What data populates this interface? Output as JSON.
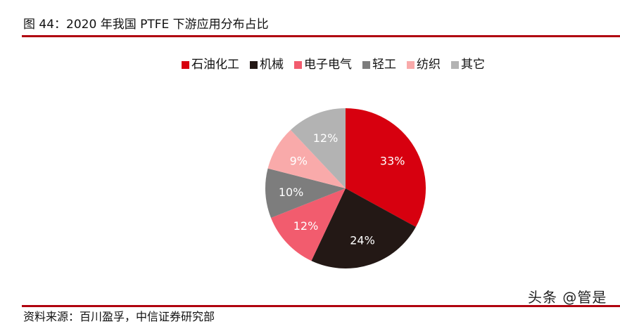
{
  "figure": {
    "title": "图 44：2020 年我国 PTFE 下游应用分布占比",
    "source": "资料来源：百川盈孚，中信证券研究部",
    "watermark": "头条 @管是"
  },
  "chart_data": {
    "type": "pie",
    "title": "图 44：2020 年我国 PTFE 下游应用分布占比",
    "categories": [
      "石油化工",
      "机械",
      "电子电气",
      "轻工",
      "纺织",
      "其它"
    ],
    "values": [
      33,
      24,
      12,
      10,
      9,
      12
    ],
    "labels": [
      "33%",
      "24%",
      "12%",
      "10%",
      "9%",
      "12%"
    ],
    "colors": [
      "#d7000f",
      "#231815",
      "#f25c6e",
      "#7d7d7d",
      "#f9aaaa",
      "#b3b3b3"
    ],
    "unit": "%",
    "start_angle": "12 o'clock, clockwise",
    "legend_position": "top"
  },
  "legend": {
    "items": [
      {
        "label": "石油化工",
        "color": "#d7000f"
      },
      {
        "label": "机械",
        "color": "#231815"
      },
      {
        "label": "电子电气",
        "color": "#f25c6e"
      },
      {
        "label": "轻工",
        "color": "#7d7d7d"
      },
      {
        "label": "纺织",
        "color": "#f9aaaa"
      },
      {
        "label": "其它",
        "color": "#b3b3b3"
      }
    ]
  }
}
